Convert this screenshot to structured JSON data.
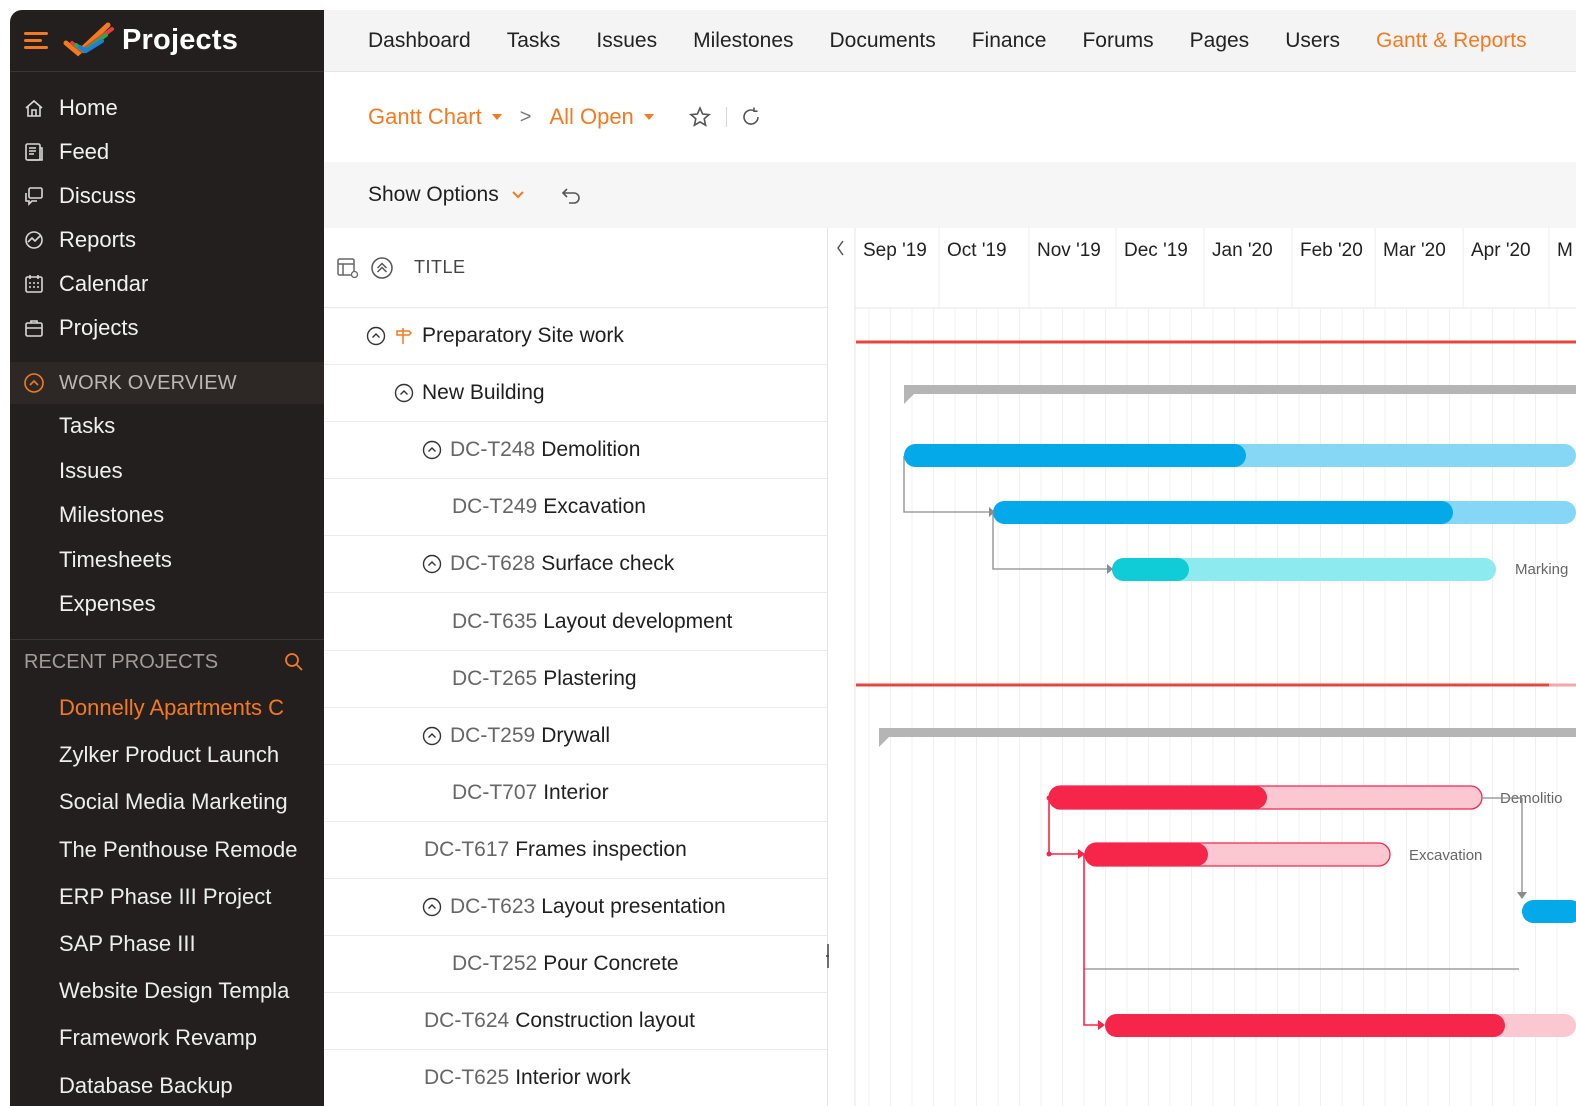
{
  "app": {
    "title": "Projects"
  },
  "sidebar": {
    "main_items": [
      {
        "label": "Home",
        "icon": "home-icon"
      },
      {
        "label": "Feed",
        "icon": "feed-icon"
      },
      {
        "label": "Discuss",
        "icon": "discuss-icon"
      },
      {
        "label": "Reports",
        "icon": "reports-icon"
      },
      {
        "label": "Calendar",
        "icon": "calendar-icon"
      },
      {
        "label": "Projects",
        "icon": "briefcase-icon"
      }
    ],
    "work_overview": {
      "label": "WORK OVERVIEW",
      "items": [
        "Tasks",
        "Issues",
        "Milestones",
        "Timesheets",
        "Expenses"
      ]
    },
    "recent_projects": {
      "label": "RECENT PROJECTS",
      "items": [
        "Donnelly Apartments C",
        "Zylker Product Launch",
        "Social Media Marketing",
        "The Penthouse Remode",
        "ERP Phase III Project",
        "SAP Phase III",
        "Website Design Templa",
        "Framework Revamp",
        "Database Backup"
      ],
      "active_index": 0
    }
  },
  "topnav": {
    "items": [
      "Dashboard",
      "Tasks",
      "Issues",
      "Milestones",
      "Documents",
      "Finance",
      "Forums",
      "Pages",
      "Users",
      "Gantt & Reports"
    ],
    "active_index": 9
  },
  "breadcrumb": {
    "view": "Gantt Chart",
    "filter": "All Open"
  },
  "options": {
    "show_options": "Show Options"
  },
  "tasklist": {
    "header": "TITLE",
    "rows": [
      {
        "id": "",
        "title": "Preparatory Site work",
        "indent": 0,
        "toggle": true,
        "milestone": true
      },
      {
        "id": "",
        "title": "New Building",
        "indent": 1,
        "toggle": true,
        "milestone": false
      },
      {
        "id": "DC-T248",
        "title": "Demolition",
        "indent": 2,
        "toggle": true
      },
      {
        "id": "DC-T249",
        "title": "Excavation",
        "indent": 3,
        "toggle": false
      },
      {
        "id": "DC-T628",
        "title": "Surface check",
        "indent": 2,
        "toggle": true
      },
      {
        "id": "DC-T635",
        "title": "Layout development",
        "indent": 3,
        "toggle": false
      },
      {
        "id": "DC-T265",
        "title": "Plastering",
        "indent": 3,
        "toggle": false
      },
      {
        "id": "DC-T259",
        "title": "Drywall",
        "indent": 2,
        "toggle": true
      },
      {
        "id": "DC-T707",
        "title": "Interior",
        "indent": 3,
        "toggle": false
      },
      {
        "id": "DC-T617",
        "title": "Frames inspection",
        "indent": 4,
        "toggle": false
      },
      {
        "id": "DC-T623",
        "title": "Layout presentation",
        "indent": 2,
        "toggle": true
      },
      {
        "id": "DC-T252",
        "title": "Pour Concrete",
        "indent": 3,
        "toggle": false
      },
      {
        "id": "DC-T624",
        "title": "Construction layout",
        "indent": 4,
        "toggle": false
      },
      {
        "id": "DC-T625",
        "title": "Interior work",
        "indent": 4,
        "toggle": false
      }
    ]
  },
  "gantt": {
    "months": [
      "Sep '19",
      "Oct '19",
      "Nov '19",
      "Dec '19",
      "Jan '20",
      "Feb '20",
      "Mar '20",
      "Apr '20",
      "M"
    ],
    "bar_labels": [
      "Marking",
      "Demolitio",
      "Excavation"
    ],
    "colors": {
      "milestone": "#e8453c",
      "group": "#b5b5b5",
      "blue": "#03a9e8",
      "blue_light": "#86d6f5",
      "teal": "#10ccd6",
      "teal_light": "#8deaef",
      "red": "#f5264a",
      "red_light": "#fbc7d0",
      "accent": "#f37a21"
    }
  }
}
